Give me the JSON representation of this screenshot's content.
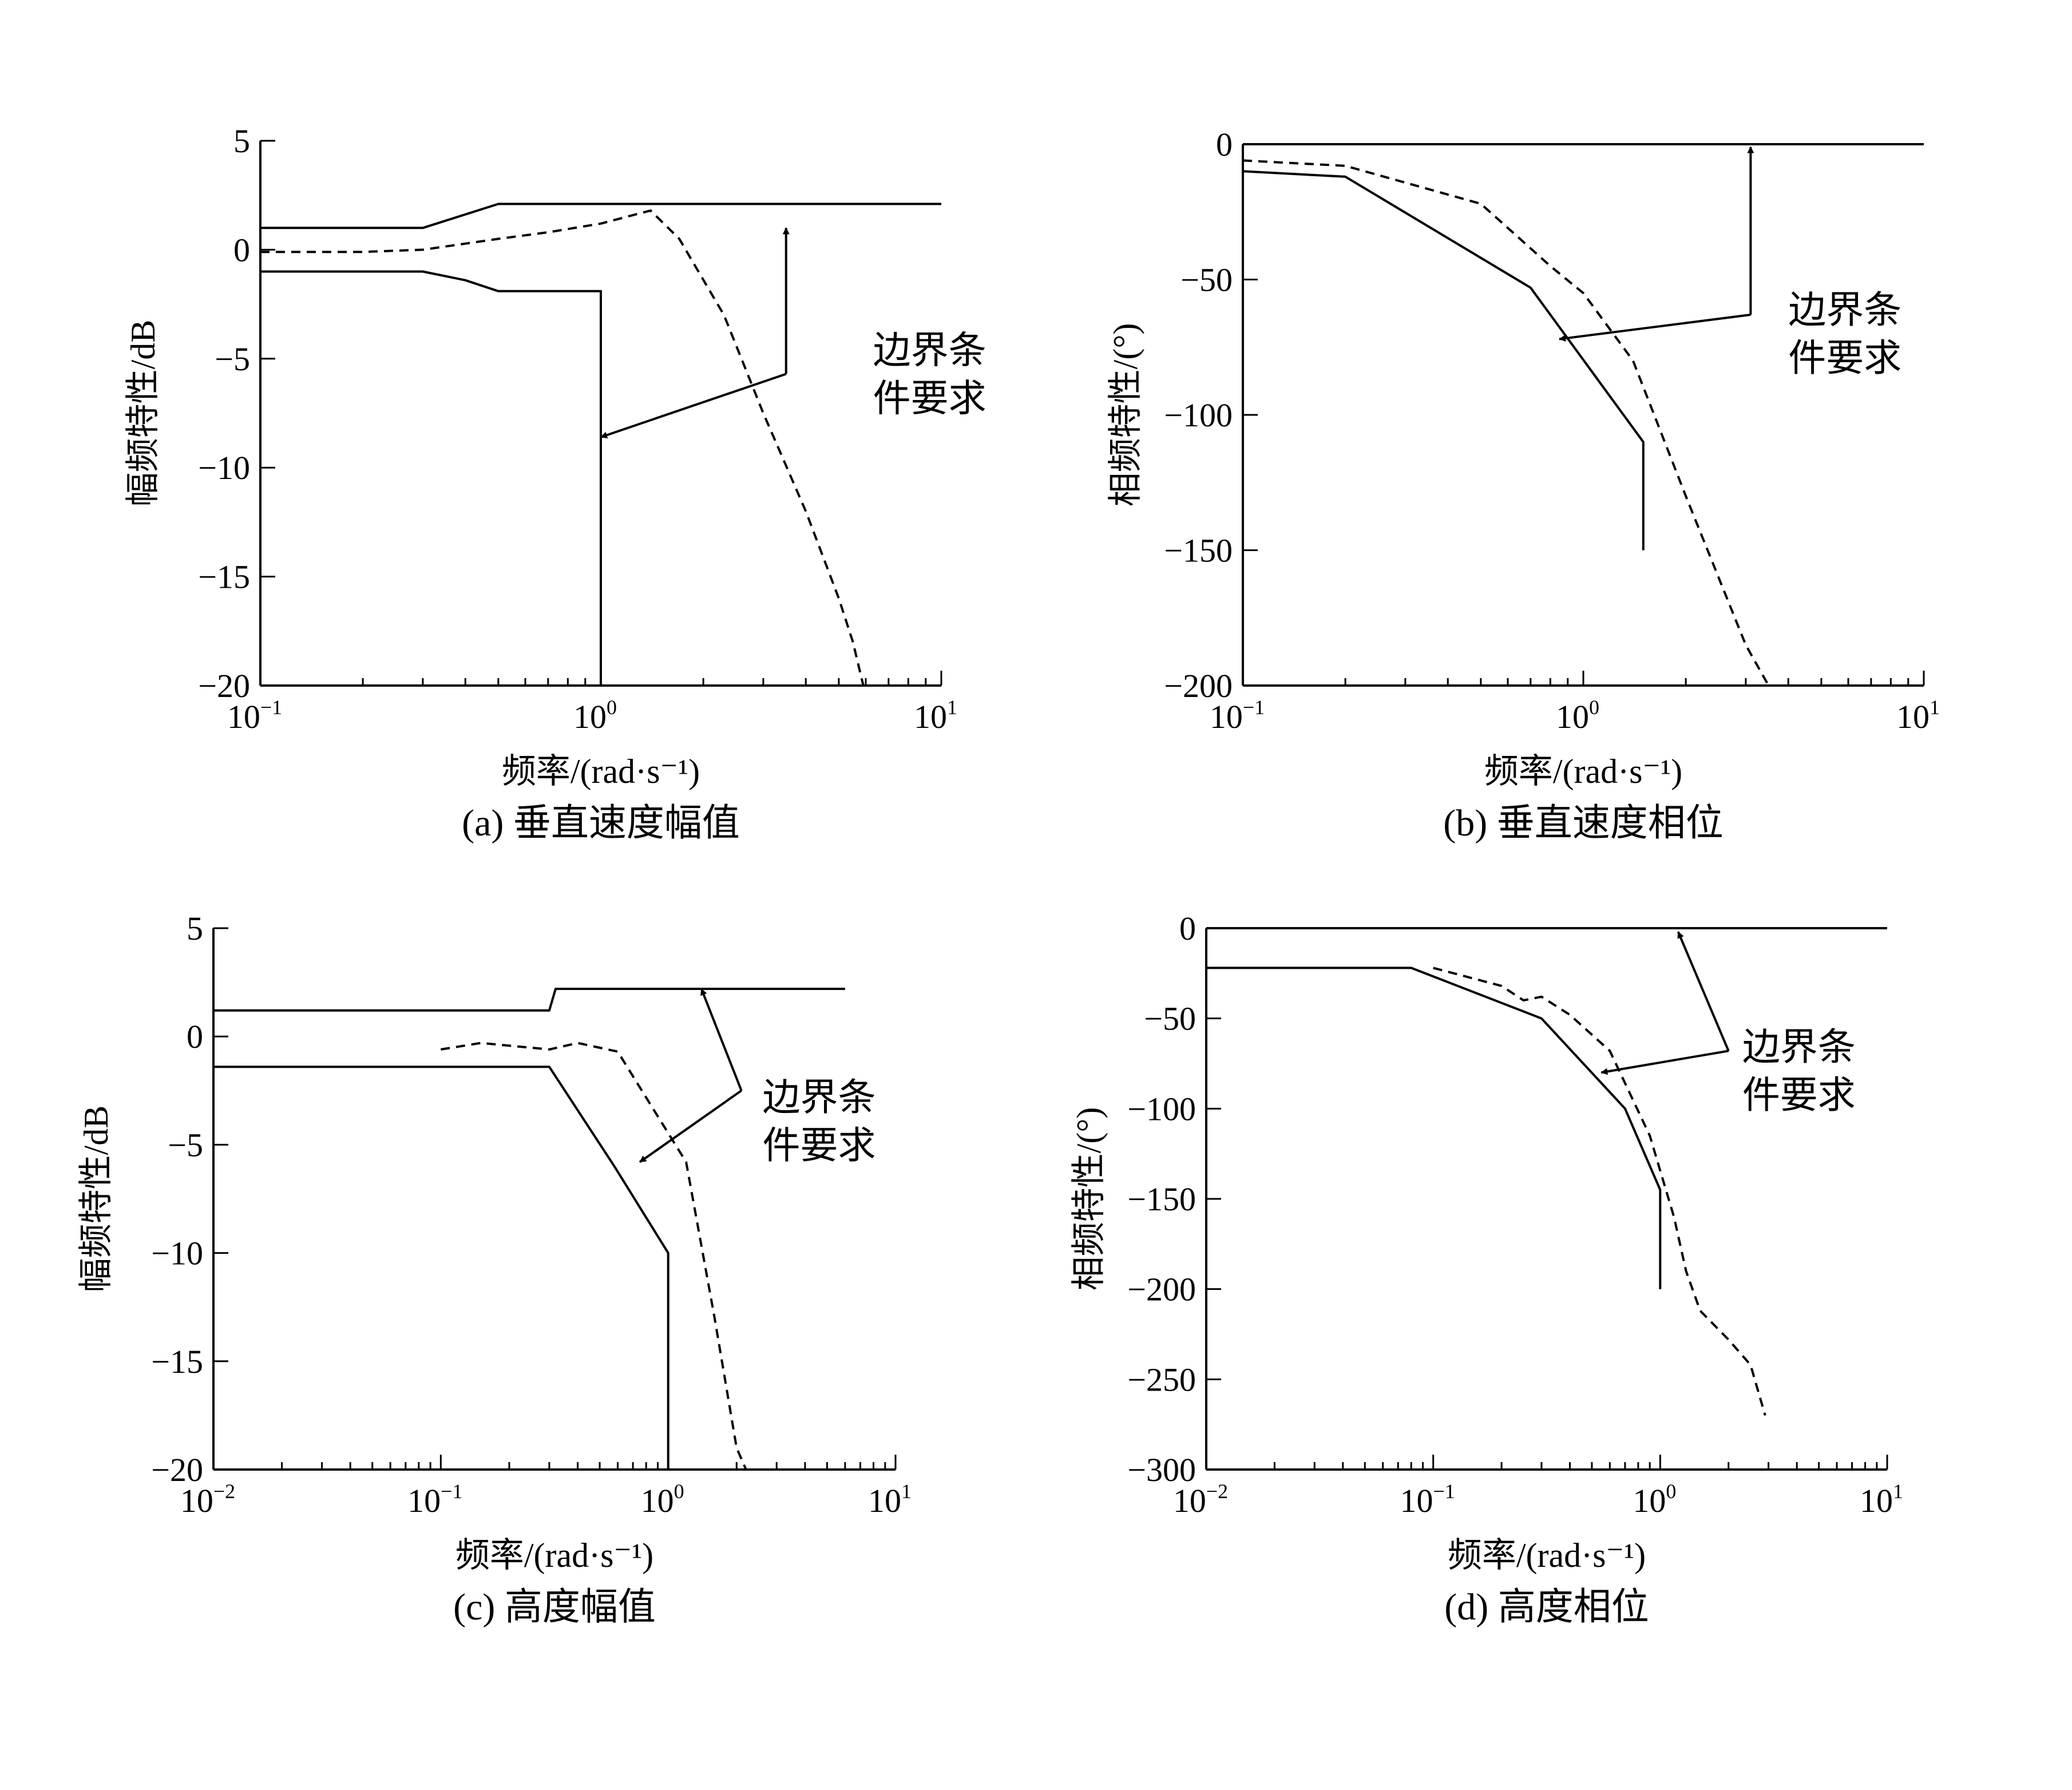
{
  "chart_data": [
    {
      "id": "a",
      "type": "line",
      "caption": "(a) 垂直速度幅值",
      "xlabel": "频率/(rad·s⁻¹)",
      "ylabel": "幅频特性/dB",
      "xscale": "log",
      "xlim": [
        0.1,
        10
      ],
      "ylim": [
        -20,
        5
      ],
      "x_decade_exponents": [
        -1,
        0,
        1
      ],
      "y_ticks": [
        5,
        0,
        -5,
        -10,
        -15,
        -20
      ],
      "y_tick_labels": [
        "5",
        "0",
        "−5",
        "−10",
        "−15",
        "−20"
      ],
      "annotation": {
        "lines": [
          "边界条",
          "件要求"
        ],
        "text_at": [
          6.3,
          -5.2
        ],
        "arrow_from": [
          3.5,
          -5.7
        ],
        "arrow_targets": [
          [
            3.5,
            1.0
          ],
          [
            1.0,
            -8.6
          ]
        ]
      },
      "series": [
        {
          "style": "solid",
          "x": [
            0.1,
            0.3,
            0.5,
            10
          ],
          "y": [
            1.0,
            1.0,
            2.1,
            2.1
          ]
        },
        {
          "style": "solid",
          "x": [
            0.1,
            0.3,
            0.4,
            0.5,
            1.0,
            1.0
          ],
          "y": [
            -1.0,
            -1.0,
            -1.4,
            -1.9,
            -1.9,
            -20
          ]
        },
        {
          "style": "dashed",
          "x": [
            0.1,
            0.2,
            0.3,
            0.5,
            0.7,
            1.0,
            1.4,
            1.7,
            2.3,
            3.0,
            4.0,
            5.0,
            5.5,
            5.9
          ],
          "y": [
            -0.1,
            -0.1,
            0.0,
            0.5,
            0.8,
            1.2,
            1.8,
            0.5,
            -3.0,
            -7.5,
            -12.0,
            -16.0,
            -18.0,
            -20.0
          ]
        }
      ]
    },
    {
      "id": "b",
      "type": "line",
      "caption": "(b) 垂直速度相位",
      "xlabel": "频率/(rad·s⁻¹)",
      "ylabel": "相频特性/(°)",
      "xscale": "log",
      "xlim": [
        0.1,
        10
      ],
      "ylim": [
        -200,
        0
      ],
      "x_decade_exponents": [
        -1,
        0,
        1
      ],
      "y_ticks": [
        0,
        -50,
        -100,
        -150,
        -200
      ],
      "y_tick_labels": [
        "0",
        "−50",
        "−100",
        "−150",
        "−200"
      ],
      "annotation": {
        "lines": [
          "边界条",
          "件要求"
        ],
        "text_at": [
          4.0,
          -66
        ],
        "arrow_from": [
          3.1,
          -63
        ],
        "arrow_targets": [
          [
            3.1,
            -1
          ],
          [
            0.85,
            -72
          ]
        ]
      },
      "series": [
        {
          "style": "solid",
          "x": [
            0.1,
            0.2,
            0.7,
            1.5,
            1.5
          ],
          "y": [
            -10,
            -12,
            -53,
            -110,
            -150
          ]
        },
        {
          "style": "dashed",
          "x": [
            0.1,
            0.2,
            0.5,
            0.8,
            1.0,
            1.4,
            2.0,
            3.0,
            3.5
          ],
          "y": [
            -6,
            -8,
            -22,
            -45,
            -55,
            -80,
            -130,
            -185,
            -200
          ]
        },
        {
          "style": "solid",
          "x": [
            0.1,
            10
          ],
          "y": [
            0,
            0
          ]
        }
      ]
    },
    {
      "id": "c",
      "type": "line",
      "caption": "(c) 高度幅值",
      "xlabel": "频率/(rad·s⁻¹)",
      "ylabel": "幅频特性/dB",
      "xscale": "log",
      "xlim": [
        0.01,
        10
      ],
      "ylim": [
        -20,
        5
      ],
      "x_decade_exponents": [
        -2,
        -1,
        0,
        1
      ],
      "y_ticks": [
        5,
        0,
        -5,
        -10,
        -15,
        -20
      ],
      "y_tick_labels": [
        "5",
        "0",
        "−5",
        "−10",
        "−15",
        "−20"
      ],
      "annotation": {
        "lines": [
          "边界条",
          "件要求"
        ],
        "text_at": [
          2.6,
          -3.4
        ],
        "arrow_from": [
          2.1,
          -2.5
        ],
        "arrow_targets": [
          [
            1.4,
            2.2
          ],
          [
            0.75,
            -5.8
          ]
        ]
      },
      "series": [
        {
          "style": "solid",
          "x": [
            0.01,
            0.3,
            0.32,
            6.0
          ],
          "y": [
            1.2,
            1.2,
            2.2,
            2.2
          ]
        },
        {
          "style": "solid",
          "x": [
            0.01,
            0.3,
            0.58,
            1.0,
            1.0
          ],
          "y": [
            -1.4,
            -1.4,
            -6.0,
            -10.0,
            -20.0
          ]
        },
        {
          "style": "dashed",
          "x": [
            0.1,
            0.15,
            0.3,
            0.4,
            0.6,
            1.2,
            1.6,
            2.0,
            2.2
          ],
          "y": [
            -0.6,
            -0.3,
            -0.6,
            -0.3,
            -0.7,
            -5.8,
            -13.0,
            -19.0,
            -20.0
          ]
        }
      ]
    },
    {
      "id": "d",
      "type": "line",
      "caption": "(d) 高度相位",
      "xlabel": "频率/(rad·s⁻¹)",
      "ylabel": "相频特性/(°)",
      "xscale": "log",
      "xlim": [
        0.01,
        10
      ],
      "ylim": [
        -300,
        0
      ],
      "x_decade_exponents": [
        -2,
        -1,
        0,
        1
      ],
      "y_ticks": [
        0,
        -50,
        -100,
        -150,
        -200,
        -250,
        -300
      ],
      "y_tick_labels": [
        "0",
        "−50",
        "−100",
        "−150",
        "−200",
        "−250",
        "−300"
      ],
      "annotation": {
        "lines": [
          "边界条",
          "件要求"
        ],
        "text_at": [
          2.3,
          -73
        ],
        "arrow_from": [
          2.0,
          -68
        ],
        "arrow_targets": [
          [
            1.2,
            -2
          ],
          [
            0.55,
            -80
          ]
        ]
      },
      "series": [
        {
          "style": "solid",
          "x": [
            0.01,
            10
          ],
          "y": [
            0,
            0
          ]
        },
        {
          "style": "solid",
          "x": [
            0.01,
            0.08,
            0.3,
            0.7,
            1.0,
            1.0
          ],
          "y": [
            -22,
            -22,
            -50,
            -100,
            -145,
            -200
          ]
        },
        {
          "style": "dashed",
          "x": [
            0.1,
            0.2,
            0.25,
            0.3,
            0.4,
            0.6,
            0.9,
            1.15,
            1.3,
            1.5,
            2.0,
            2.5,
            2.9
          ],
          "y": [
            -22,
            -32,
            -40,
            -38,
            -48,
            -68,
            -115,
            -160,
            -190,
            -212,
            -228,
            -242,
            -270
          ]
        }
      ]
    }
  ]
}
